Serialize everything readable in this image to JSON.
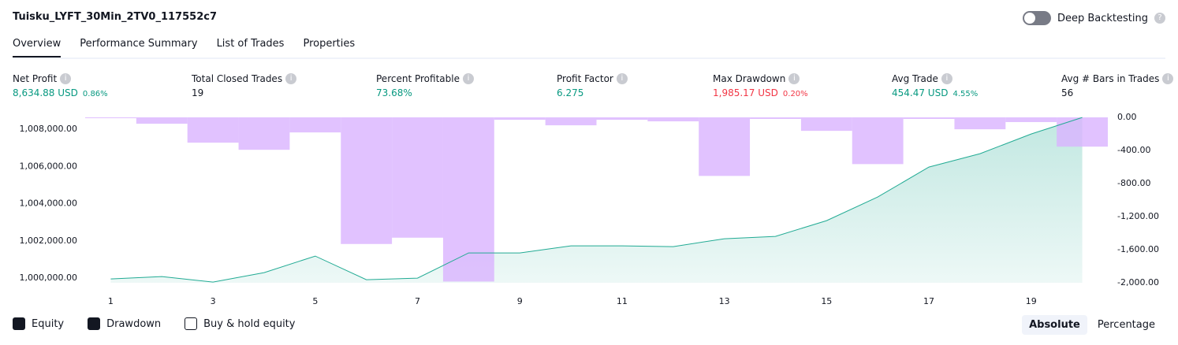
{
  "header": {
    "title": "Tuisku_LYFT_30Min_2TV0_117552c7",
    "toggle_label": "Deep Backtesting"
  },
  "tabs": [
    "Overview",
    "Performance Summary",
    "List of Trades",
    "Properties"
  ],
  "metrics": [
    {
      "label": "Net Profit",
      "value": "8,634.88 USD",
      "percent": "0.86%",
      "color": "#089981"
    },
    {
      "label": "Total Closed Trades",
      "value": "19",
      "color": "#131722"
    },
    {
      "label": "Percent Profitable",
      "value": "73.68%",
      "color": "#089981"
    },
    {
      "label": "Profit Factor",
      "value": "6.275",
      "color": "#089981"
    },
    {
      "label": "Max Drawdown",
      "value": "1,985.17 USD",
      "percent": "0.20%",
      "color": "#f23645"
    },
    {
      "label": "Avg Trade",
      "value": "454.47 USD",
      "percent": "4.55%",
      "color": "#089981"
    },
    {
      "label": "Avg # Bars in Trades",
      "value": "56",
      "color": "#131722"
    }
  ],
  "chart_data": {
    "type": "combo",
    "x": [
      1,
      2,
      3,
      4,
      5,
      6,
      7,
      8,
      9,
      10,
      11,
      12,
      13,
      14,
      15,
      16,
      17,
      18,
      19,
      20
    ],
    "xlim": [
      0.5,
      20.5
    ],
    "xticks": [
      1,
      3,
      5,
      7,
      9,
      11,
      13,
      15,
      17,
      19
    ],
    "ylim": [
      999750,
      1008640
    ],
    "yticks": [
      {
        "value": 1000000,
        "label": "1,000,000.00"
      },
      {
        "value": 1002000,
        "label": "1,002,000.00"
      },
      {
        "value": 1004000,
        "label": "1,004,000.00"
      },
      {
        "value": 1006000,
        "label": "1,006,000.00"
      },
      {
        "value": 1008000,
        "label": "1,008,000.00"
      }
    ],
    "y2lim": [
      -2000,
      0
    ],
    "y2ticks": [
      {
        "value": 0,
        "label": "0.00"
      },
      {
        "value": -400,
        "label": "-400.00"
      },
      {
        "value": -800,
        "label": "-800.00"
      },
      {
        "value": -1200,
        "label": "-1,200.00"
      },
      {
        "value": -1600,
        "label": "-1,600.00"
      },
      {
        "value": -2000,
        "label": "-2,000.00"
      }
    ],
    "series": [
      {
        "name": "Equity",
        "type": "line",
        "color": "#22ab94",
        "values": [
          999958,
          1000085,
          999788,
          1000296,
          1001185,
          999915,
          1000000,
          1001354,
          1001354,
          1001735,
          1001735,
          1001693,
          1002116,
          1002243,
          1003090,
          1004360,
          1005968,
          1006688,
          1007746,
          1008635
        ]
      },
      {
        "name": "Drawdown",
        "type": "bar",
        "axis": "y2",
        "color": "#d9b3ff",
        "values": [
          -10,
          -77,
          -306,
          -392,
          -182,
          -1531,
          -1455,
          -1985,
          -29,
          -96,
          -29,
          -48,
          -708,
          -19,
          -163,
          -565,
          -19,
          -144,
          -57,
          -354
        ]
      }
    ]
  },
  "footer": {
    "extra_toggle": "Buy & hold equity",
    "buttons": [
      "Absolute",
      "Percentage"
    ]
  }
}
